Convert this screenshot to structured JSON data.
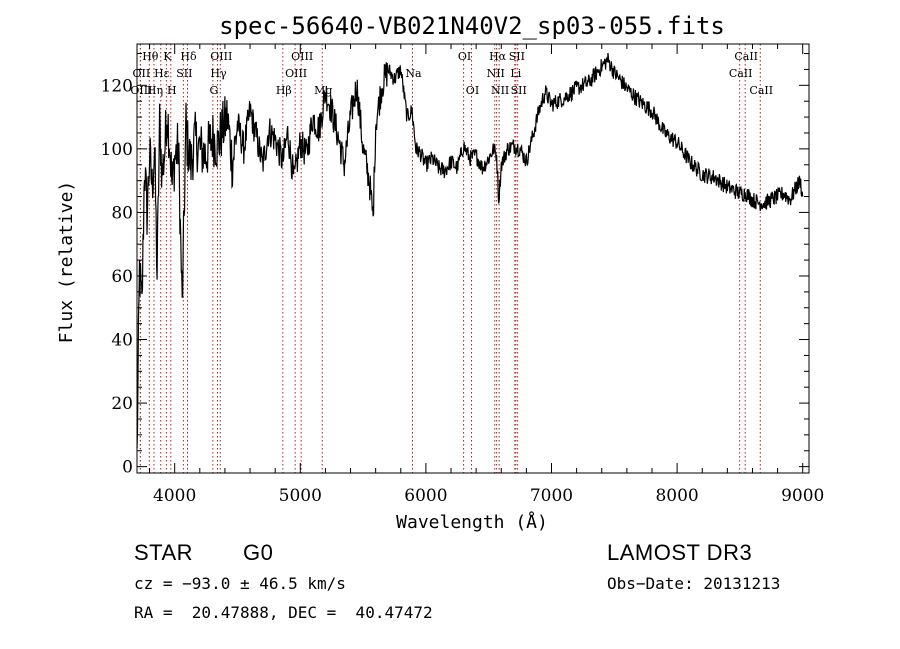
{
  "chart_data": {
    "type": "line",
    "title": "spec-56640-VB021N40V2_sp03-055.fits",
    "xlabel": "Wavelength (Å)",
    "ylabel": "Flux (relative)",
    "xlim": [
      3700,
      9050
    ],
    "ylim": [
      -2,
      133
    ],
    "xticks": [
      4000,
      5000,
      6000,
      7000,
      8000,
      9000
    ],
    "yticks": [
      0,
      20,
      40,
      60,
      80,
      100,
      120
    ],
    "series": [
      {
        "name": "flux",
        "x": [
          3700,
          3720,
          3740,
          3760,
          3780,
          3800,
          3820,
          3840,
          3860,
          3880,
          3900,
          3920,
          3940,
          3960,
          3980,
          4000,
          4030,
          4060,
          4090,
          4100,
          4130,
          4160,
          4200,
          4250,
          4300,
          4340,
          4380,
          4420,
          4460,
          4500,
          4550,
          4600,
          4650,
          4700,
          4750,
          4800,
          4861,
          4900,
          4950,
          5000,
          5050,
          5100,
          5150,
          5200,
          5250,
          5300,
          5350,
          5400,
          5450,
          5500,
          5550,
          5580,
          5600,
          5650,
          5700,
          5750,
          5800,
          5850,
          5890,
          5920,
          5950,
          6000,
          6050,
          6100,
          6150,
          6200,
          6250,
          6300,
          6350,
          6400,
          6450,
          6500,
          6540,
          6563,
          6580,
          6600,
          6650,
          6700,
          6750,
          6800,
          6850,
          6900,
          6950,
          7000,
          7100,
          7200,
          7300,
          7400,
          7450,
          7500,
          7600,
          7700,
          7800,
          7900,
          8000,
          8100,
          8200,
          8300,
          8400,
          8500,
          8550,
          8600,
          8650,
          8700,
          8750,
          8800,
          8850,
          8900,
          8950,
          8980,
          9000
        ],
        "values": [
          3,
          62,
          50,
          95,
          80,
          98,
          88,
          100,
          60,
          108,
          92,
          99,
          112,
          102,
          88,
          97,
          101,
          50,
          108,
          102,
          95,
          103,
          100,
          98,
          104,
          101,
          106,
          110,
          95,
          108,
          100,
          112,
          104,
          95,
          106,
          103,
          96,
          105,
          90,
          102,
          98,
          110,
          106,
          118,
          112,
          104,
          95,
          110,
          120,
          100,
          90,
          78,
          108,
          120,
          125,
          122,
          125,
          110,
          112,
          100,
          99,
          95,
          97,
          94,
          93,
          96,
          94,
          101,
          97,
          98,
          94,
          97,
          100,
          98,
          84,
          95,
          100,
          101,
          100,
          96,
          104,
          112,
          118,
          114,
          116,
          119,
          121,
          126,
          128,
          124,
          119,
          115,
          112,
          105,
          102,
          96,
          92,
          91,
          88,
          86,
          86,
          84,
          83,
          83,
          84,
          85,
          86,
          84,
          88,
          90,
          85
        ]
      }
    ],
    "lines": [
      {
        "name": "Hθ",
        "wave": 3798,
        "row": 0
      },
      {
        "name": "OII",
        "wave": 3727,
        "row": 1
      },
      {
        "name": "OIII",
        "wave": 3727,
        "row": 2
      },
      {
        "name": "Hη",
        "wave": 3835,
        "row": 2
      },
      {
        "name": "Hε",
        "wave": 3889,
        "row": 1
      },
      {
        "name": "K",
        "wave": 3934,
        "row": 0
      },
      {
        "name": "H",
        "wave": 3969,
        "row": 2
      },
      {
        "name": "SII",
        "wave": 4069,
        "row": 1
      },
      {
        "name": "Hδ",
        "wave": 4102,
        "row": 0
      },
      {
        "name": "OIII",
        "wave": 4363,
        "row": 0
      },
      {
        "name": "Hγ",
        "wave": 4341,
        "row": 1
      },
      {
        "name": "G",
        "wave": 4304,
        "row": 2
      },
      {
        "name": "OIII",
        "wave": 5007,
        "row": 0
      },
      {
        "name": "OIII",
        "wave": 4959,
        "row": 1
      },
      {
        "name": "Hβ",
        "wave": 4861,
        "row": 2
      },
      {
        "name": "Mg",
        "wave": 5175,
        "row": 2
      },
      {
        "name": "Na",
        "wave": 5893,
        "row": 1
      },
      {
        "name": "OI",
        "wave": 6300,
        "row": 0
      },
      {
        "name": "OI",
        "wave": 6363,
        "row": 2
      },
      {
        "name": "Hα",
        "wave": 6563,
        "row": 0
      },
      {
        "name": "NII",
        "wave": 6548,
        "row": 1
      },
      {
        "name": "NII",
        "wave": 6583,
        "row": 2
      },
      {
        "name": "SII",
        "wave": 6716,
        "row": 0
      },
      {
        "name": "Li",
        "wave": 6708,
        "row": 1
      },
      {
        "name": "SII",
        "wave": 6731,
        "row": 2
      },
      {
        "name": "CaII",
        "wave": 8542,
        "row": 0
      },
      {
        "name": "CaII",
        "wave": 8498,
        "row": 1
      },
      {
        "name": "CaII",
        "wave": 8662,
        "row": 2
      }
    ]
  },
  "info": {
    "object_class": "STAR",
    "subclass": "G0",
    "survey": "LAMOST DR3",
    "cz": "cz = −93.0 ± 46.5 km/s",
    "obs_date": "Obs−Date: 20131213",
    "coords": "RA =  20.47888, DEC =  40.47472"
  },
  "colors": {
    "axis": "#000000",
    "spectrum": "#000000",
    "line_marker": "#b22222"
  }
}
